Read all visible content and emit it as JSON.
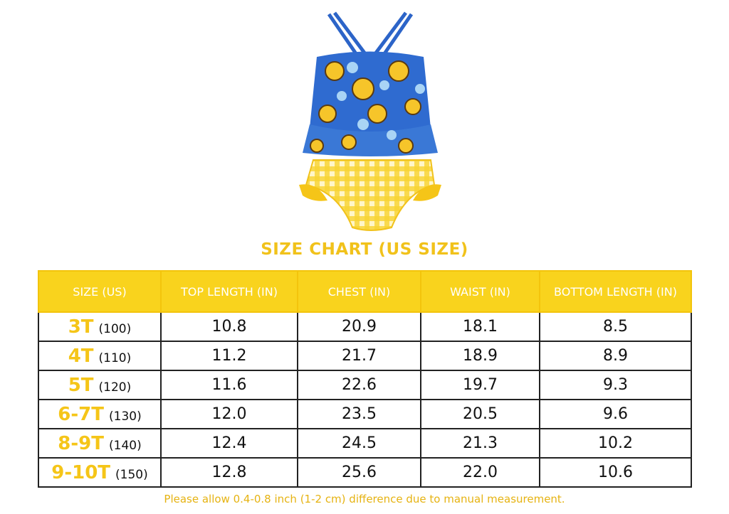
{
  "title": "SIZE CHART (US SIZE)",
  "table": {
    "headers": [
      "SIZE  (US)",
      "TOP LENGTH (IN)",
      "CHEST  (IN)",
      "WAIST  (IN)",
      "BOTTOM LENGTH (IN)"
    ],
    "rows": [
      [
        {
          "size": "3T",
          "cm": "(100)"
        },
        "10.8",
        "20.9",
        "18.1",
        "8.5"
      ],
      [
        {
          "size": "4T",
          "cm": "(110)"
        },
        "11.2",
        "21.7",
        "18.9",
        "8.9"
      ],
      [
        {
          "size": "5T",
          "cm": "(120)"
        },
        "11.6",
        "22.6",
        "19.7",
        "9.3"
      ],
      [
        {
          "size": "6-7T",
          "cm": "(130)"
        },
        "12.0",
        "23.5",
        "20.5",
        "9.6"
      ],
      [
        {
          "size": "8-9T",
          "cm": "(140)"
        },
        "12.4",
        "24.5",
        "21.3",
        "10.2"
      ],
      [
        {
          "size": "9-10T",
          "cm": "(150)"
        },
        "12.8",
        "25.6",
        "22.0",
        "10.6"
      ]
    ]
  },
  "note": "Please allow 0.4-0.8 inch (1-2 cm) difference due to manual measurement."
}
